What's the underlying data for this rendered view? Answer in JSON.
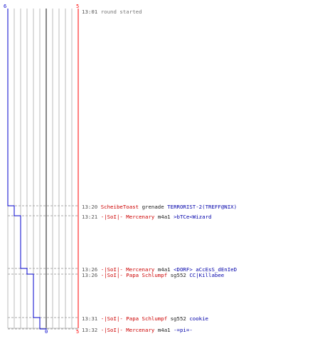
{
  "colors": {
    "team_blue": "#0000cc",
    "team_red": "#ff0000",
    "grid_gray": "#bbbbbb",
    "center_line": "#555555",
    "dash_guide": "#aaaaaa",
    "text_gray": "#777777",
    "text_red": "#cc0000",
    "text_blue": "#0000aa"
  },
  "chart_data": {
    "type": "line",
    "series": [
      {
        "name": "",
        "color": "#0000cc",
        "x": [
          "13:01",
          "13:20",
          "13:21",
          "13:26",
          "13:26",
          "13:31",
          "13:32"
        ],
        "values": [
          6,
          5,
          4,
          3,
          2,
          1,
          0
        ]
      }
    ],
    "start_labels": {
      "blue": "6",
      "red": "5"
    },
    "end_labels": {
      "blue": "0",
      "red": "5"
    }
  },
  "log": [
    {
      "time": "13:01",
      "info": "round started"
    },
    {
      "time": "13:20",
      "killer": "ScheibeToast",
      "killer_team": "red",
      "weapon": "grenade",
      "victim": "TERRORIST-2(TREFF@NIX)",
      "victim_team": "blue"
    },
    {
      "time": "13:21",
      "killer": "-|SoI|- Mercenary",
      "killer_team": "red",
      "weapon": "m4a1",
      "victim": ">bTCe<Wizard",
      "victim_team": "blue"
    },
    {
      "time": "13:26",
      "killer": "-|SoI|- Mercenary",
      "killer_team": "red",
      "weapon": "m4a1",
      "victim": "<DORF> aCcEsS_dEnIeD",
      "victim_team": "blue"
    },
    {
      "time": "13:26",
      "killer": "-|SoI|- Papa Schlumpf",
      "killer_team": "red",
      "weapon": "sg552",
      "victim": "CC|Killabee",
      "victim_team": "blue"
    },
    {
      "time": "13:31",
      "killer": "-|SoI|- Papa Schlumpf",
      "killer_team": "red",
      "weapon": "sg552",
      "victim": "cookie",
      "victim_team": "blue"
    },
    {
      "time": "13:32",
      "killer": "-|SoI|- Mercenary",
      "killer_team": "red",
      "weapon": "m4a1",
      "victim": "-=pi=-",
      "victim_team": "blue"
    }
  ]
}
